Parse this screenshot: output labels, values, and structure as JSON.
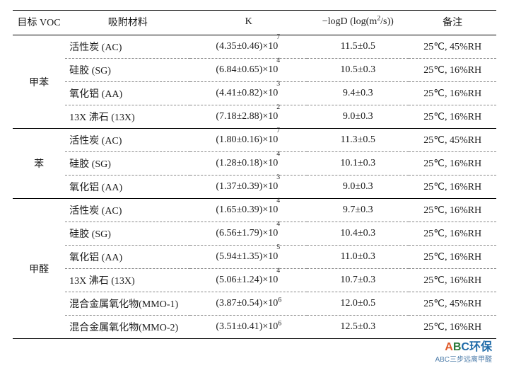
{
  "headers": {
    "voc": "目标 VOC",
    "material": "吸附材料",
    "k": "K",
    "logd_pre": "−logD (log(m",
    "logd_sup": "2",
    "logd_post": "/s))",
    "remark": "备注"
  },
  "groups": [
    {
      "voc": "甲苯",
      "rows": [
        {
          "material": "活性炭 (AC)",
          "k_base": "(4.35±0.46)×10",
          "k_exp": "7",
          "logd": "11.5±0.5",
          "remark": "25℃, 45%RH"
        },
        {
          "material": "硅胶 (SG)",
          "k_base": "(6.84±0.65)×10",
          "k_exp": "4",
          "logd": "10.5±0.3",
          "remark": "25℃, 16%RH"
        },
        {
          "material": "氧化铝 (AA)",
          "k_base": "(4.41±0.82)×10",
          "k_exp": "3",
          "logd": "9.4±0.3",
          "remark": "25℃, 16%RH"
        },
        {
          "material": "13X 沸石 (13X)",
          "k_base": "(7.18±2.88)×10",
          "k_exp": "2",
          "logd": "9.0±0.3",
          "remark": "25℃, 16%RH"
        }
      ]
    },
    {
      "voc": "苯",
      "rows": [
        {
          "material": "活性炭 (AC)",
          "k_base": "(1.80±0.16)×10",
          "k_exp": "7",
          "logd": "11.3±0.5",
          "remark": "25℃, 45%RH"
        },
        {
          "material": "硅胶 (SG)",
          "k_base": "(1.28±0.18)×10",
          "k_exp": "4",
          "logd": "10.1±0.3",
          "remark": "25℃, 16%RH"
        },
        {
          "material": "氧化铝 (AA)",
          "k_base": "(1.37±0.39)×10",
          "k_exp": "3",
          "logd": "9.0±0.3",
          "remark": "25℃, 16%RH"
        }
      ]
    },
    {
      "voc": "甲醛",
      "rows": [
        {
          "material": "活性炭 (AC)",
          "k_base": "(1.65±0.39)×10",
          "k_exp": "4",
          "logd": "9.7±0.3",
          "remark": "25℃, 16%RH"
        },
        {
          "material": "硅胶 (SG)",
          "k_base": "(6.56±1.79)×10",
          "k_exp": "4",
          "logd": "10.4±0.3",
          "remark": "25℃, 16%RH"
        },
        {
          "material": "氧化铝 (AA)",
          "k_base": "(5.94±1.35)×10",
          "k_exp": "5",
          "logd": "11.0±0.3",
          "remark": "25℃, 16%RH"
        },
        {
          "material": "13X 沸石 (13X)",
          "k_base": "(5.06±1.24)×10",
          "k_exp": "4",
          "logd": "10.7±0.3",
          "remark": "25℃, 16%RH"
        },
        {
          "material": "混合金属氧化物(MMO-1)",
          "k_base": "(3.87±0.54)×10",
          "k_exp": "6",
          "k_inline": true,
          "logd": "12.0±0.5",
          "remark": "25℃, 45%RH"
        },
        {
          "material": "混合金属氧化物(MMO-2)",
          "k_base": "(3.51±0.41)×10",
          "k_exp": "6",
          "k_inline": true,
          "logd": "12.5±0.3",
          "remark": "25℃, 16%RH"
        }
      ]
    }
  ],
  "watermark": {
    "a": "A",
    "b": "B",
    "c": "C",
    "rest": "环保",
    "sub": "ABC三步远离甲醛"
  }
}
